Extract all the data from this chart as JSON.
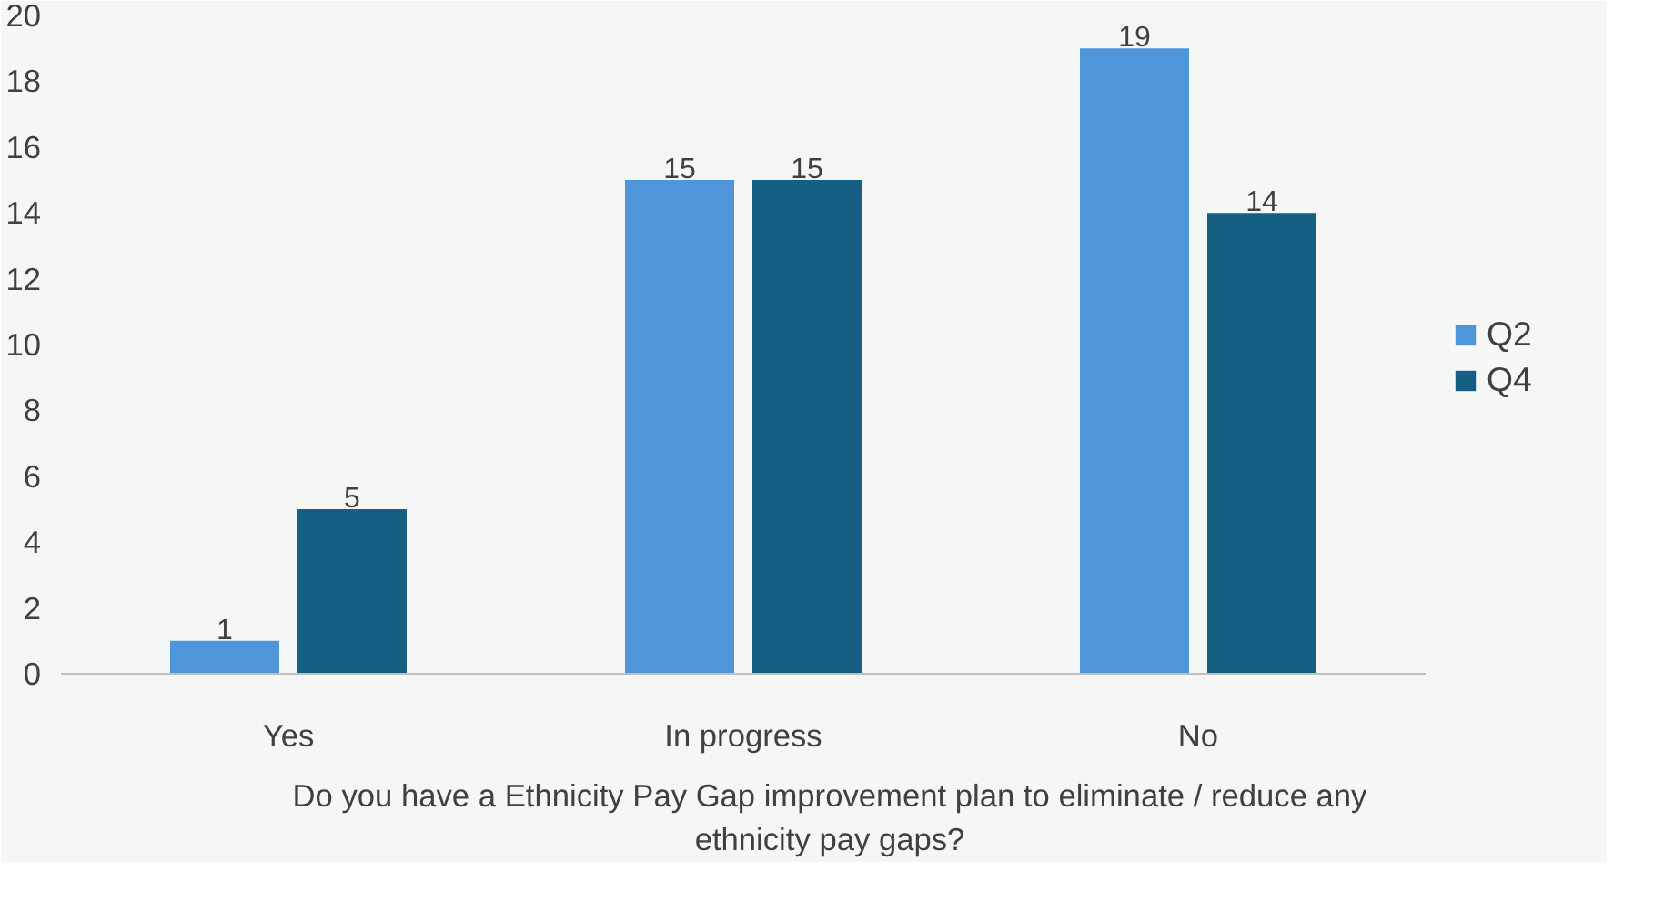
{
  "chart_data": {
    "type": "bar",
    "xlabel": "Do you have a Ethnicity Pay Gap improvement plan to eliminate / reduce any ethnicity pay gaps?",
    "categories": [
      "Yes",
      "In progress",
      "No"
    ],
    "series": [
      {
        "name": "Q2",
        "color": "#4e95d9",
        "values": [
          1,
          15,
          19
        ]
      },
      {
        "name": "Q4",
        "color": "#155f82",
        "values": [
          5,
          15,
          14
        ]
      }
    ],
    "ylim": [
      0,
      20
    ],
    "yticks": [
      0,
      2,
      4,
      6,
      8,
      10,
      12,
      14,
      16,
      18,
      20
    ],
    "data_labels": true,
    "legend": "right",
    "grid": false
  }
}
